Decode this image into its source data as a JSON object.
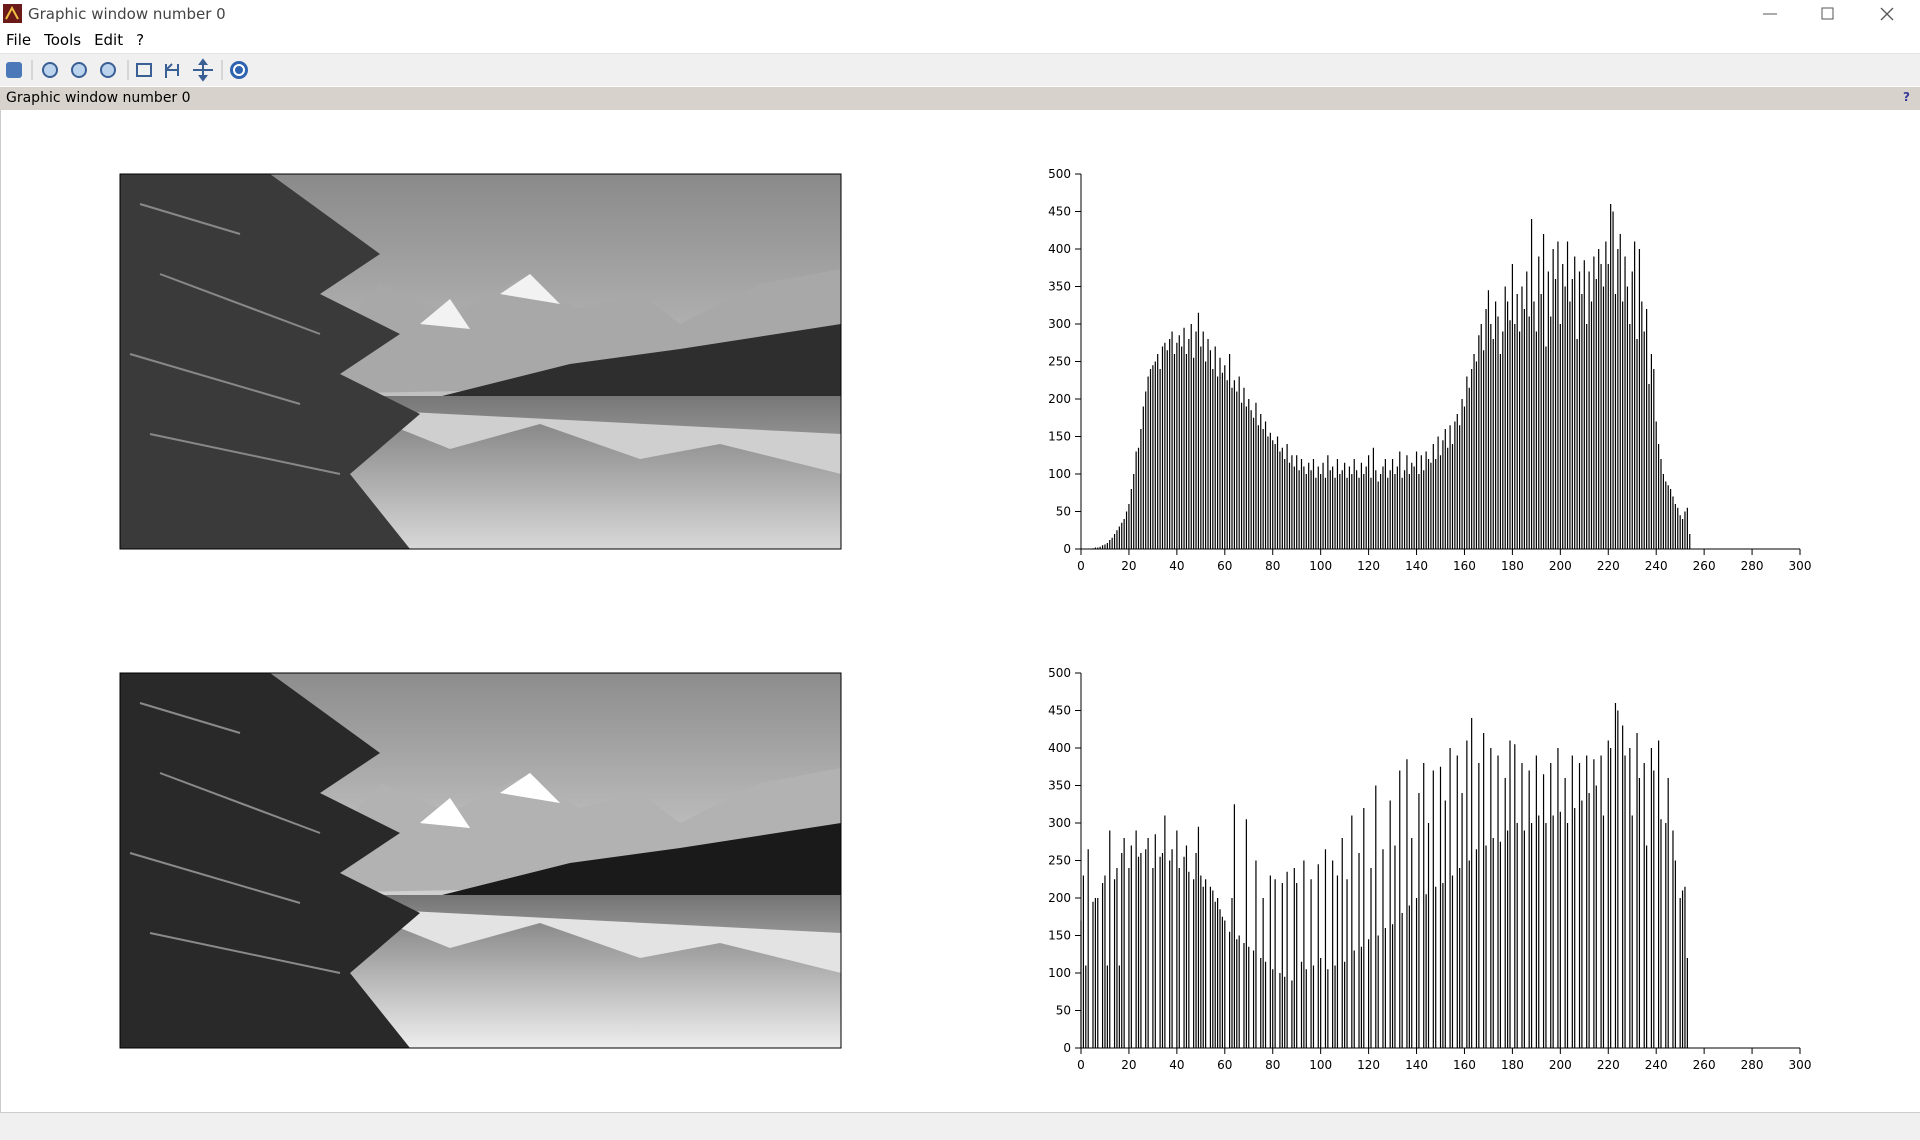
{
  "window": {
    "title": "Graphic window number 0"
  },
  "menu": [
    "File",
    "Tools",
    "Edit",
    "?"
  ],
  "info_bar": {
    "text": "Graphic window number 0",
    "help": "?"
  },
  "chart_data": [
    {
      "type": "bar",
      "color": "#000000",
      "x": [
        0,
        1,
        2,
        3,
        4,
        5,
        6,
        7,
        8,
        9,
        10,
        11,
        12,
        13,
        14,
        15,
        16,
        17,
        18,
        19,
        20,
        21,
        22,
        23,
        24,
        25,
        26,
        27,
        28,
        29,
        30,
        31,
        32,
        33,
        34,
        35,
        36,
        37,
        38,
        39,
        40,
        41,
        42,
        43,
        44,
        45,
        46,
        47,
        48,
        49,
        50,
        51,
        52,
        53,
        54,
        55,
        56,
        57,
        58,
        59,
        60,
        61,
        62,
        63,
        64,
        65,
        66,
        67,
        68,
        69,
        70,
        71,
        72,
        73,
        74,
        75,
        76,
        77,
        78,
        79,
        80,
        81,
        82,
        83,
        84,
        85,
        86,
        87,
        88,
        89,
        90,
        91,
        92,
        93,
        94,
        95,
        96,
        97,
        98,
        99,
        100,
        101,
        102,
        103,
        104,
        105,
        106,
        107,
        108,
        109,
        110,
        111,
        112,
        113,
        114,
        115,
        116,
        117,
        118,
        119,
        120,
        121,
        122,
        123,
        124,
        125,
        126,
        127,
        128,
        129,
        130,
        131,
        132,
        133,
        134,
        135,
        136,
        137,
        138,
        139,
        140,
        141,
        142,
        143,
        144,
        145,
        146,
        147,
        148,
        149,
        150,
        151,
        152,
        153,
        154,
        155,
        156,
        157,
        158,
        159,
        160,
        161,
        162,
        163,
        164,
        165,
        166,
        167,
        168,
        169,
        170,
        171,
        172,
        173,
        174,
        175,
        176,
        177,
        178,
        179,
        180,
        181,
        182,
        183,
        184,
        185,
        186,
        187,
        188,
        189,
        190,
        191,
        192,
        193,
        194,
        195,
        196,
        197,
        198,
        199,
        200,
        201,
        202,
        203,
        204,
        205,
        206,
        207,
        208,
        209,
        210,
        211,
        212,
        213,
        214,
        215,
        216,
        217,
        218,
        219,
        220,
        221,
        222,
        223,
        224,
        225,
        226,
        227,
        228,
        229,
        230,
        231,
        232,
        233,
        234,
        235,
        236,
        237,
        238,
        239,
        240,
        241,
        242,
        243,
        244,
        245,
        246,
        247,
        248,
        249,
        250,
        251,
        252,
        253,
        254,
        255
      ],
      "values": [
        0,
        0,
        0,
        0,
        0,
        1,
        2,
        2,
        3,
        5,
        6,
        8,
        12,
        15,
        20,
        25,
        30,
        35,
        40,
        50,
        60,
        80,
        100,
        130,
        135,
        160,
        190,
        210,
        230,
        240,
        245,
        250,
        260,
        240,
        270,
        275,
        265,
        280,
        290,
        260,
        275,
        285,
        270,
        295,
        260,
        280,
        300,
        255,
        290,
        315,
        270,
        290,
        250,
        280,
        265,
        240,
        270,
        230,
        255,
        235,
        245,
        225,
        260,
        215,
        225,
        210,
        230,
        195,
        215,
        190,
        200,
        185,
        175,
        195,
        165,
        180,
        160,
        170,
        150,
        155,
        145,
        140,
        150,
        130,
        135,
        120,
        140,
        115,
        125,
        110,
        125,
        105,
        120,
        110,
        100,
        115,
        105,
        120,
        95,
        110,
        100,
        115,
        95,
        125,
        105,
        110,
        95,
        120,
        100,
        105,
        115,
        95,
        110,
        100,
        120,
        105,
        95,
        115,
        100,
        110,
        125,
        95,
        135,
        105,
        90,
        100,
        110,
        120,
        95,
        105,
        120,
        100,
        110,
        130,
        95,
        105,
        125,
        100,
        115,
        110,
        130,
        100,
        125,
        105,
        130,
        120,
        115,
        140,
        120,
        150,
        125,
        145,
        160,
        135,
        165,
        140,
        170,
        180,
        165,
        200,
        190,
        230,
        215,
        240,
        260,
        250,
        285,
        300,
        265,
        320,
        345,
        300,
        280,
        330,
        310,
        260,
        290,
        350,
        330,
        305,
        380,
        300,
        340,
        290,
        350,
        320,
        370,
        310,
        440,
        330,
        290,
        390,
        340,
        420,
        270,
        370,
        310,
        400,
        360,
        410,
        300,
        380,
        350,
        410,
        330,
        360,
        390,
        280,
        370,
        340,
        385,
        300,
        370,
        330,
        390,
        360,
        400,
        380,
        350,
        410,
        380,
        460,
        450,
        340,
        400,
        420,
        330,
        390,
        350,
        300,
        370,
        410,
        280,
        400,
        330,
        290,
        320,
        220,
        260,
        240,
        170,
        140,
        120,
        100,
        90,
        85,
        80,
        70,
        60,
        55,
        45,
        40,
        50,
        55,
        20,
        0
      ],
      "xlim": [
        0,
        300
      ],
      "ylim": [
        0,
        500
      ],
      "xticks": [
        0,
        20,
        40,
        60,
        80,
        100,
        120,
        140,
        160,
        180,
        200,
        220,
        240,
        260,
        280,
        300
      ],
      "yticks": [
        0,
        50,
        100,
        150,
        200,
        250,
        300,
        350,
        400,
        450,
        500
      ]
    },
    {
      "type": "bar",
      "color": "#000000",
      "x": [
        0,
        1,
        2,
        3,
        4,
        5,
        6,
        7,
        8,
        9,
        10,
        11,
        12,
        13,
        14,
        15,
        16,
        17,
        18,
        19,
        20,
        21,
        22,
        23,
        24,
        25,
        26,
        27,
        28,
        29,
        30,
        31,
        32,
        33,
        34,
        35,
        36,
        37,
        38,
        39,
        40,
        41,
        42,
        43,
        44,
        45,
        46,
        47,
        48,
        49,
        50,
        51,
        52,
        53,
        54,
        55,
        56,
        57,
        58,
        59,
        60,
        61,
        62,
        63,
        64,
        65,
        66,
        67,
        68,
        69,
        70,
        71,
        72,
        73,
        74,
        75,
        76,
        77,
        78,
        79,
        80,
        81,
        82,
        83,
        84,
        85,
        86,
        87,
        88,
        89,
        90,
        91,
        92,
        93,
        94,
        95,
        96,
        97,
        98,
        99,
        100,
        101,
        102,
        103,
        104,
        105,
        106,
        107,
        108,
        109,
        110,
        111,
        112,
        113,
        114,
        115,
        116,
        117,
        118,
        119,
        120,
        121,
        122,
        123,
        124,
        125,
        126,
        127,
        128,
        129,
        130,
        131,
        132,
        133,
        134,
        135,
        136,
        137,
        138,
        139,
        140,
        141,
        142,
        143,
        144,
        145,
        146,
        147,
        148,
        149,
        150,
        151,
        152,
        153,
        154,
        155,
        156,
        157,
        158,
        159,
        160,
        161,
        162,
        163,
        164,
        165,
        166,
        167,
        168,
        169,
        170,
        171,
        172,
        173,
        174,
        175,
        176,
        177,
        178,
        179,
        180,
        181,
        182,
        183,
        184,
        185,
        186,
        187,
        188,
        189,
        190,
        191,
        192,
        193,
        194,
        195,
        196,
        197,
        198,
        199,
        200,
        201,
        202,
        203,
        204,
        205,
        206,
        207,
        208,
        209,
        210,
        211,
        212,
        213,
        214,
        215,
        216,
        217,
        218,
        219,
        220,
        221,
        222,
        223,
        224,
        225,
        226,
        227,
        228,
        229,
        230,
        231,
        232,
        233,
        234,
        235,
        236,
        237,
        238,
        239,
        240,
        241,
        242,
        243,
        244,
        245,
        246,
        247,
        248,
        249,
        250,
        251,
        252,
        253,
        254,
        255
      ],
      "values": [
        170,
        230,
        110,
        265,
        0,
        195,
        200,
        200,
        0,
        220,
        230,
        110,
        290,
        0,
        225,
        240,
        110,
        260,
        280,
        0,
        240,
        270,
        0,
        290,
        255,
        260,
        0,
        265,
        280,
        0,
        240,
        285,
        0,
        255,
        260,
        310,
        0,
        250,
        265,
        0,
        290,
        240,
        0,
        255,
        270,
        235,
        0,
        225,
        260,
        295,
        230,
        215,
        225,
        0,
        215,
        210,
        195,
        200,
        185,
        175,
        170,
        0,
        155,
        200,
        325,
        145,
        150,
        0,
        140,
        305,
        135,
        0,
        130,
        250,
        0,
        120,
        200,
        115,
        0,
        230,
        105,
        225,
        0,
        100,
        220,
        95,
        235,
        0,
        90,
        240,
        220,
        0,
        115,
        250,
        105,
        0,
        225,
        110,
        0,
        245,
        120,
        0,
        265,
        105,
        0,
        250,
        110,
        230,
        0,
        280,
        115,
        225,
        0,
        310,
        130,
        0,
        260,
        135,
        320,
        0,
        145,
        240,
        0,
        350,
        150,
        0,
        265,
        160,
        0,
        330,
        165,
        270,
        0,
        370,
        180,
        0,
        385,
        190,
        280,
        0,
        200,
        340,
        0,
        380,
        205,
        300,
        0,
        370,
        215,
        0,
        375,
        220,
        330,
        0,
        400,
        230,
        0,
        390,
        240,
        340,
        0,
        410,
        250,
        440,
        0,
        265,
        380,
        0,
        420,
        270,
        0,
        400,
        280,
        0,
        390,
        275,
        0,
        360,
        290,
        410,
        0,
        405,
        300,
        0,
        380,
        290,
        0,
        370,
        300,
        0,
        390,
        310,
        0,
        365,
        300,
        0,
        380,
        310,
        0,
        400,
        315,
        0,
        360,
        300,
        0,
        390,
        320,
        0,
        380,
        330,
        0,
        390,
        340,
        0,
        385,
        350,
        0,
        390,
        310,
        0,
        410,
        400,
        0,
        460,
        450,
        0,
        430,
        390,
        0,
        400,
        310,
        0,
        420,
        360,
        0,
        380,
        270,
        0,
        400,
        370,
        0,
        410,
        305,
        0,
        300,
        360,
        0,
        290,
        250,
        0,
        200,
        210,
        215,
        120,
        0,
        0
      ],
      "xlim": [
        0,
        300
      ],
      "ylim": [
        0,
        500
      ],
      "xticks": [
        0,
        20,
        40,
        60,
        80,
        100,
        120,
        140,
        160,
        180,
        200,
        220,
        240,
        260,
        280,
        300
      ],
      "yticks": [
        0,
        50,
        100,
        150,
        200,
        250,
        300,
        350,
        400,
        450,
        500
      ]
    }
  ]
}
